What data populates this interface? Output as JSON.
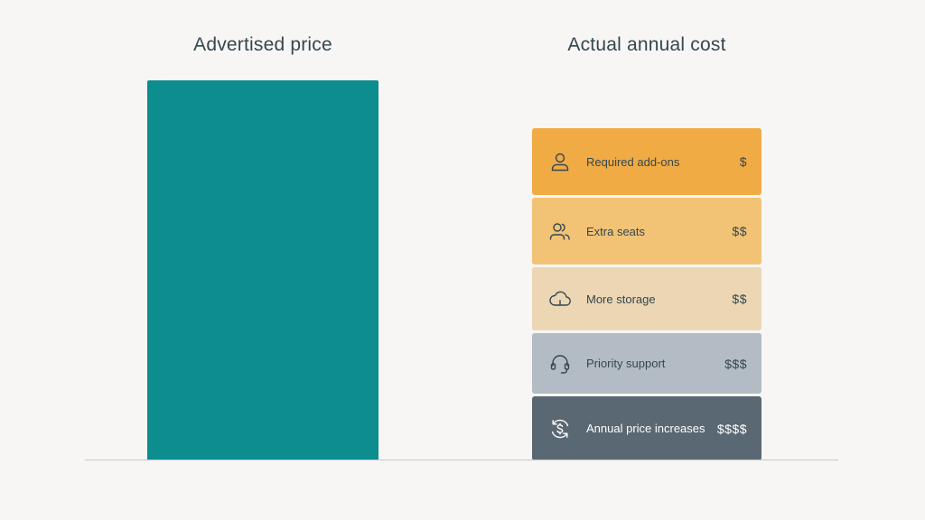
{
  "titles": {
    "left": "Advertised price",
    "right": "Actual annual cost"
  },
  "advertised": {
    "color": "#0e8d8e"
  },
  "segments": [
    {
      "label": "Required add-ons",
      "amount": "$",
      "icon": "user-icon",
      "bg": "#f0ab44",
      "fg": "#34474f"
    },
    {
      "label": "Extra seats",
      "amount": "$$",
      "icon": "users-icon",
      "bg": "#f2c275",
      "fg": "#34474f"
    },
    {
      "label": "More storage",
      "amount": "$$",
      "icon": "cloud-icon",
      "bg": "#ecd6b4",
      "fg": "#34474f"
    },
    {
      "label": "Priority support",
      "amount": "$$$",
      "icon": "headset-icon",
      "bg": "#b3bcc4",
      "fg": "#34474f"
    },
    {
      "label": "Annual price increases",
      "amount": "$$$$",
      "icon": "dollar-refresh-icon",
      "bg": "#5a6873",
      "fg": "#ffffff"
    }
  ]
}
